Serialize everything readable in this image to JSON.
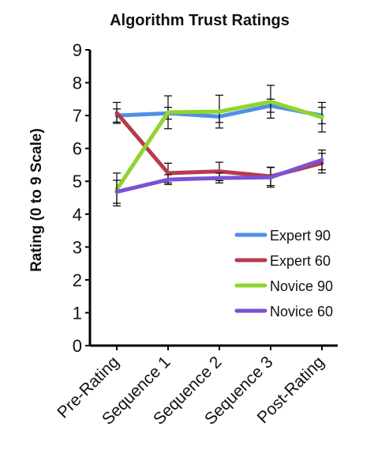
{
  "chart_data": {
    "type": "line",
    "title": "Algorithm Trust Ratings",
    "ylabel": "Rating (0 to 9 Scale)",
    "xlabel": "",
    "ylim": [
      0,
      9
    ],
    "yticks": [
      "0",
      "1",
      "2",
      "3",
      "4",
      "5",
      "6",
      "7",
      "8",
      "9"
    ],
    "categories": [
      "Pre-Rating",
      "Sequence 1",
      "Sequence 2",
      "Sequence 3",
      "Post-Rating"
    ],
    "legend_position": "right-middle",
    "grid": false,
    "series": [
      {
        "name": "Expert 90",
        "color": "#4f8fe6",
        "values": [
          7.0,
          7.07,
          6.97,
          7.3,
          7.0
        ],
        "err": [
          0.2,
          0.18,
          0.18,
          0.2,
          0.25
        ]
      },
      {
        "name": "Expert 60",
        "color": "#b73b4a",
        "values": [
          7.08,
          5.25,
          5.3,
          5.15,
          5.55
        ],
        "err": [
          0.32,
          0.3,
          0.28,
          0.28,
          0.3
        ]
      },
      {
        "name": "Novice 90",
        "color": "#8fd42f",
        "values": [
          4.75,
          7.1,
          7.12,
          7.42,
          6.95
        ],
        "err": [
          0.5,
          0.5,
          0.5,
          0.5,
          0.45
        ]
      },
      {
        "name": "Novice 60",
        "color": "#7b52d6",
        "values": [
          4.68,
          5.05,
          5.1,
          5.12,
          5.65
        ],
        "err": [
          0.35,
          0.15,
          0.15,
          0.3,
          0.3
        ]
      }
    ]
  }
}
